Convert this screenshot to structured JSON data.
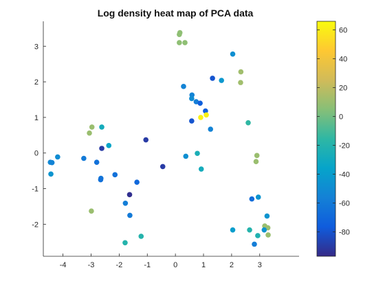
{
  "chart_data": {
    "type": "scatter",
    "title": "Log density heat map of PCA data",
    "xlabel": "",
    "ylabel": "",
    "xlim": [
      -4.7,
      4.4
    ],
    "ylim": [
      -2.9,
      3.7
    ],
    "xticks": [
      -4,
      -3,
      -2,
      -1,
      0,
      1,
      2,
      3
    ],
    "yticks": [
      -2,
      -1,
      0,
      1,
      2,
      3
    ],
    "grid": false,
    "colorbar": {
      "colormap": "parula",
      "range": [
        -97,
        66
      ],
      "ticks": [
        60,
        40,
        20,
        0,
        -20,
        -40,
        -60,
        -80
      ],
      "placement": "right"
    },
    "points": [
      {
        "x": 0.16,
        "y": 3.38,
        "c": 7
      },
      {
        "x": 0.14,
        "y": 3.33,
        "c": 7
      },
      {
        "x": 0.14,
        "y": 3.1,
        "c": 7
      },
      {
        "x": 0.34,
        "y": 3.1,
        "c": 7
      },
      {
        "x": 2.04,
        "y": 2.78,
        "c": -48
      },
      {
        "x": 2.33,
        "y": 2.28,
        "c": 12
      },
      {
        "x": 2.32,
        "y": 1.98,
        "c": 12
      },
      {
        "x": 1.32,
        "y": 2.1,
        "c": -80
      },
      {
        "x": 1.64,
        "y": 2.04,
        "c": -43
      },
      {
        "x": 0.29,
        "y": 1.87,
        "c": -55
      },
      {
        "x": 0.59,
        "y": 1.63,
        "c": -55
      },
      {
        "x": 0.58,
        "y": 1.53,
        "c": -50
      },
      {
        "x": 0.74,
        "y": 1.44,
        "c": -58
      },
      {
        "x": 0.88,
        "y": 1.4,
        "c": -75
      },
      {
        "x": 1.07,
        "y": 1.18,
        "c": -75
      },
      {
        "x": 1.1,
        "y": 1.07,
        "c": 62
      },
      {
        "x": 0.9,
        "y": 1.0,
        "c": 62
      },
      {
        "x": 0.58,
        "y": 0.9,
        "c": -80
      },
      {
        "x": 1.25,
        "y": 0.67,
        "c": -55
      },
      {
        "x": 2.59,
        "y": 0.85,
        "c": -15
      },
      {
        "x": 2.9,
        "y": -0.07,
        "c": 10
      },
      {
        "x": 2.87,
        "y": -0.24,
        "c": 10
      },
      {
        "x": -2.97,
        "y": 0.73,
        "c": 10
      },
      {
        "x": -3.06,
        "y": 0.56,
        "c": 10
      },
      {
        "x": -2.62,
        "y": 0.73,
        "c": -28
      },
      {
        "x": -2.37,
        "y": 0.21,
        "c": -35
      },
      {
        "x": -2.62,
        "y": 0.13,
        "c": -90
      },
      {
        "x": -1.05,
        "y": 0.37,
        "c": -90
      },
      {
        "x": -4.19,
        "y": -0.11,
        "c": -50
      },
      {
        "x": -4.45,
        "y": -0.26,
        "c": -52
      },
      {
        "x": -4.39,
        "y": -0.27,
        "c": -55
      },
      {
        "x": -4.43,
        "y": -0.59,
        "c": -45
      },
      {
        "x": -3.26,
        "y": -0.15,
        "c": -60
      },
      {
        "x": -2.8,
        "y": -0.26,
        "c": -65
      },
      {
        "x": -2.65,
        "y": -0.71,
        "c": -62
      },
      {
        "x": -2.66,
        "y": -0.75,
        "c": -65
      },
      {
        "x": -2.15,
        "y": -0.61,
        "c": -65
      },
      {
        "x": -0.45,
        "y": -0.38,
        "c": -90
      },
      {
        "x": -1.37,
        "y": -0.82,
        "c": -70
      },
      {
        "x": -1.63,
        "y": -1.17,
        "c": -95
      },
      {
        "x": -1.78,
        "y": -1.41,
        "c": -58
      },
      {
        "x": -1.62,
        "y": -1.75,
        "c": -60
      },
      {
        "x": -2.99,
        "y": -1.63,
        "c": 10
      },
      {
        "x": -1.22,
        "y": -2.34,
        "c": -20
      },
      {
        "x": -1.79,
        "y": -2.52,
        "c": -20
      },
      {
        "x": 0.37,
        "y": -0.09,
        "c": -48
      },
      {
        "x": 0.78,
        "y": -0.01,
        "c": -25
      },
      {
        "x": 0.92,
        "y": -0.45,
        "c": -28
      },
      {
        "x": 2.04,
        "y": -2.16,
        "c": -40
      },
      {
        "x": 2.72,
        "y": -1.29,
        "c": -68
      },
      {
        "x": 2.95,
        "y": -1.24,
        "c": -45
      },
      {
        "x": 3.26,
        "y": -1.77,
        "c": -45
      },
      {
        "x": 3.18,
        "y": -2.05,
        "c": 10
      },
      {
        "x": 3.29,
        "y": -2.1,
        "c": 10
      },
      {
        "x": 3.3,
        "y": -2.3,
        "c": 10
      },
      {
        "x": 2.64,
        "y": -2.16,
        "c": -20
      },
      {
        "x": 3.16,
        "y": -2.16,
        "c": -45
      },
      {
        "x": 2.93,
        "y": -2.32,
        "c": -22
      },
      {
        "x": 2.81,
        "y": -2.56,
        "c": -58
      }
    ]
  }
}
